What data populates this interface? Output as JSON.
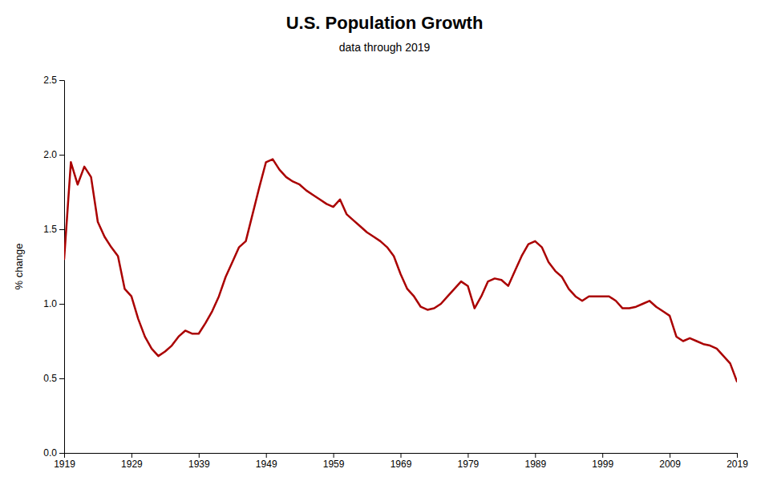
{
  "chart_data": {
    "type": "line",
    "title": "U.S. Population Growth",
    "subtitle": "data through 2019",
    "y_label": "% change",
    "color": "#aa0000",
    "grid": false,
    "xlim": [
      1919,
      2019
    ],
    "ylim": [
      0.0,
      2.5
    ],
    "xticks": [
      1919,
      1929,
      1939,
      1949,
      1959,
      1969,
      1979,
      1989,
      1999,
      2009,
      2019
    ],
    "yticks": [
      {
        "value": 0.0,
        "label": "0.0"
      },
      0.5,
      {
        "value": 1.0,
        "label": "1.0"
      },
      1.5,
      {
        "value": 2.0,
        "label": "2.0"
      },
      2.5
    ],
    "x": [
      1919,
      1920,
      1921,
      1922,
      1923,
      1924,
      1925,
      1926,
      1927,
      1928,
      1929,
      1930,
      1931,
      1932,
      1933,
      1934,
      1935,
      1936,
      1937,
      1938,
      1939,
      1940,
      1941,
      1942,
      1943,
      1944,
      1945,
      1946,
      1947,
      1948,
      1949,
      1950,
      1951,
      1952,
      1953,
      1954,
      1955,
      1956,
      1957,
      1958,
      1959,
      1960,
      1961,
      1962,
      1963,
      1964,
      1965,
      1966,
      1967,
      1968,
      1969,
      1970,
      1971,
      1972,
      1973,
      1974,
      1975,
      1976,
      1977,
      1978,
      1979,
      1980,
      1981,
      1982,
      1983,
      1984,
      1985,
      1986,
      1987,
      1988,
      1989,
      1990,
      1991,
      1992,
      1993,
      1994,
      1995,
      1996,
      1997,
      1998,
      1999,
      2000,
      2001,
      2002,
      2003,
      2004,
      2005,
      2006,
      2007,
      2008,
      2009,
      2010,
      2011,
      2012,
      2013,
      2014,
      2015,
      2016,
      2017,
      2018,
      2019
    ],
    "values": [
      1.3,
      1.95,
      1.8,
      1.92,
      1.85,
      1.55,
      1.45,
      1.38,
      1.32,
      1.1,
      1.05,
      0.9,
      0.78,
      0.7,
      0.65,
      0.68,
      0.72,
      0.78,
      0.82,
      0.8,
      0.8,
      0.87,
      0.95,
      1.05,
      1.18,
      1.28,
      1.38,
      1.42,
      1.6,
      1.78,
      1.95,
      1.97,
      1.9,
      1.85,
      1.82,
      1.8,
      1.76,
      1.73,
      1.7,
      1.67,
      1.65,
      1.7,
      1.6,
      1.56,
      1.52,
      1.48,
      1.45,
      1.42,
      1.38,
      1.32,
      1.2,
      1.1,
      1.05,
      0.98,
      0.96,
      0.97,
      1.0,
      1.05,
      1.1,
      1.15,
      1.12,
      0.97,
      1.05,
      1.15,
      1.17,
      1.16,
      1.12,
      1.22,
      1.32,
      1.4,
      1.42,
      1.38,
      1.28,
      1.22,
      1.18,
      1.1,
      1.05,
      1.02,
      1.05,
      1.05,
      1.05,
      1.05,
      1.02,
      0.97,
      0.97,
      0.98,
      1.0,
      1.02,
      0.98,
      0.95,
      0.92,
      0.78,
      0.75,
      0.77,
      0.75,
      0.73,
      0.72,
      0.7,
      0.65,
      0.6,
      0.48
    ]
  }
}
